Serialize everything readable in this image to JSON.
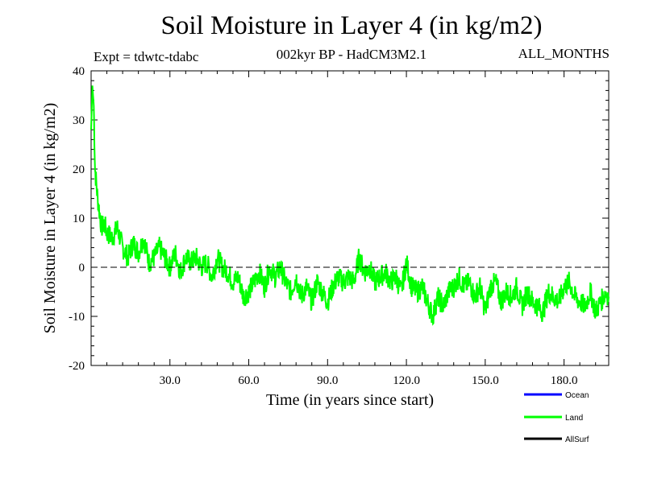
{
  "chart_data": {
    "type": "line",
    "title": "Soil Moisture in Layer 4 (in kg/m2)",
    "subtitle": "002kyr BP - HadCM3M2.1",
    "expt_label": "Expt = tdwtc-tdabc",
    "period_label": "ALL_MONTHS",
    "xlabel": "Time (in years since start)",
    "ylabel": "Soil Moisture in Layer 4 (in kg/m2)",
    "xlim": [
      0,
      197
    ],
    "ylim": [
      -20,
      40
    ],
    "xticks": [
      30,
      60,
      90,
      120,
      150,
      180
    ],
    "xtick_labels": [
      "30.0",
      "60.0",
      "90.0",
      "120.0",
      "150.0",
      "180.0"
    ],
    "yticks": [
      -20,
      -10,
      0,
      10,
      20,
      30,
      40
    ],
    "ytick_labels": [
      "-20",
      "-10",
      "0",
      "10",
      "20",
      "30",
      "40"
    ],
    "reference_line": 0,
    "legend_position": "bottom-right, below plot",
    "series": [
      {
        "name": "Ocean",
        "color": "#0000ff",
        "values": []
      },
      {
        "name": "Land",
        "color": "#00ff00",
        "x": [
          0,
          0.5,
          1,
          1.5,
          2,
          2.5,
          3,
          4,
          5,
          6,
          8,
          10,
          12,
          14,
          16,
          18,
          20,
          22,
          24,
          26,
          28,
          30,
          32,
          34,
          36,
          38,
          40,
          42,
          44,
          46,
          48,
          50,
          52,
          54,
          56,
          58,
          60,
          62,
          64,
          66,
          68,
          70,
          72,
          74,
          76,
          78,
          80,
          82,
          84,
          86,
          88,
          90,
          92,
          94,
          96,
          98,
          100,
          102,
          104,
          106,
          108,
          110,
          112,
          114,
          116,
          118,
          120,
          122,
          124,
          126,
          128,
          130,
          132,
          134,
          136,
          138,
          140,
          142,
          144,
          146,
          148,
          150,
          152,
          154,
          156,
          158,
          160,
          162,
          164,
          166,
          168,
          170,
          172,
          174,
          176,
          178,
          180,
          182,
          184,
          186,
          188,
          190,
          192,
          194,
          196,
          197
        ],
        "values": [
          28,
          37,
          33,
          20,
          17,
          14,
          12,
          8,
          9,
          7,
          6,
          8,
          4,
          2,
          5,
          3,
          6,
          1,
          2,
          4,
          2,
          0,
          3,
          -1,
          2,
          1,
          2,
          0,
          1,
          -2,
          2,
          0,
          -1,
          -3,
          -2,
          -6,
          -5,
          -3,
          -1,
          -4,
          0,
          -2,
          0,
          -3,
          -5,
          -2,
          -6,
          -4,
          -7,
          -3,
          -5,
          -7,
          -4,
          -2,
          -3,
          -2,
          -3,
          2,
          -1,
          0,
          -3,
          -2,
          -1,
          -3,
          -2,
          -5,
          1,
          -4,
          -5,
          -4,
          -7,
          -10,
          -6,
          -8,
          -5,
          -4,
          -2,
          -4,
          -3,
          -6,
          -4,
          -9,
          -4,
          -3,
          -7,
          -5,
          -6,
          -4,
          -8,
          -5,
          -7,
          -8,
          -9,
          -5,
          -6,
          -7,
          -4,
          -3,
          -6,
          -7,
          -8,
          -5,
          -9,
          -7,
          -5,
          -6
        ]
      },
      {
        "name": "AllSurf",
        "color": "#000000",
        "values": []
      }
    ]
  }
}
